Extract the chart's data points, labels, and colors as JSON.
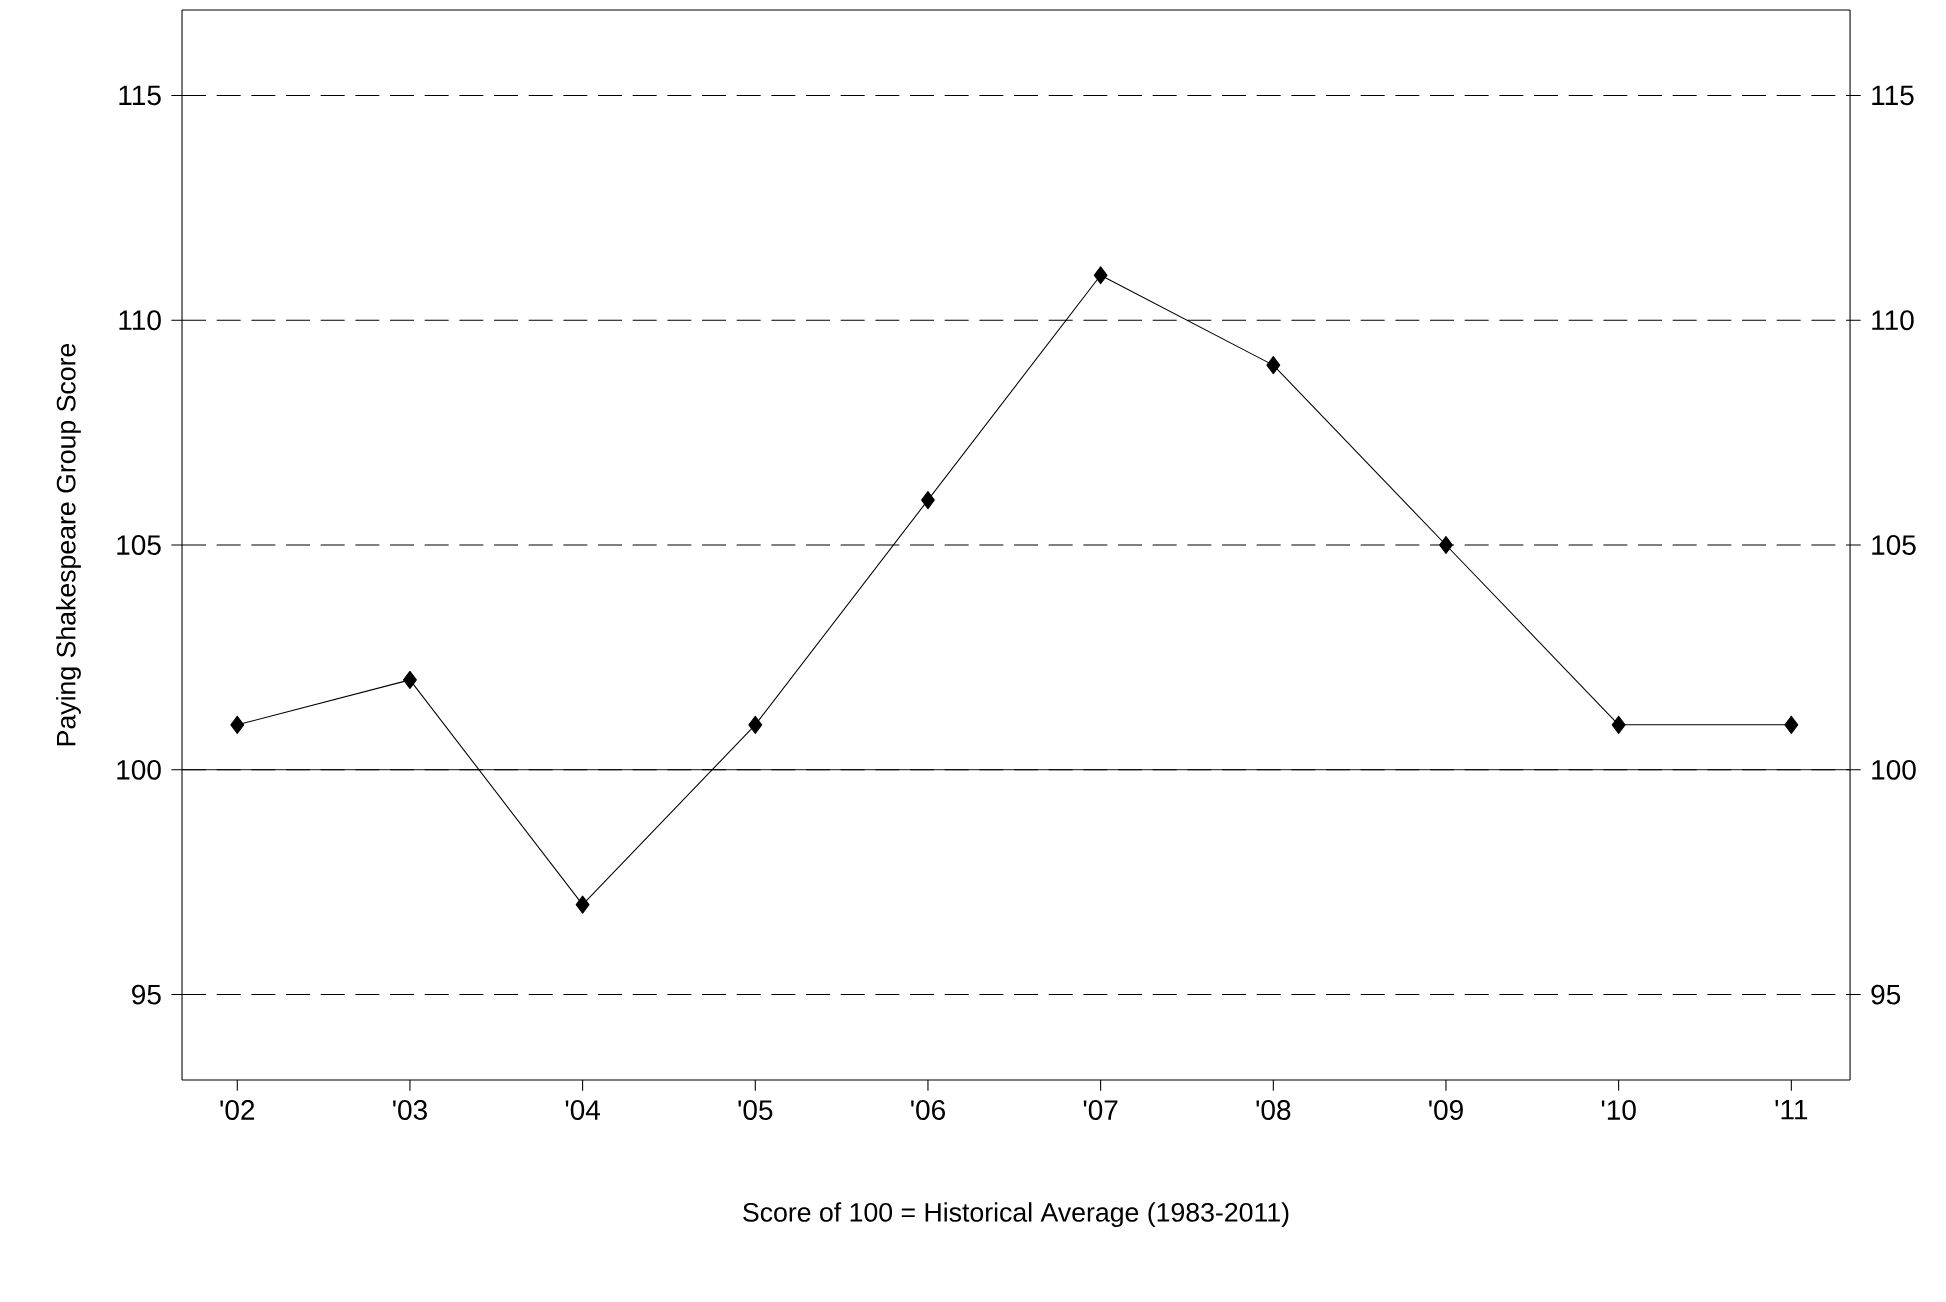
{
  "chart_data": {
    "type": "line",
    "categories": [
      "'02",
      "'03",
      "'04",
      "'05",
      "'06",
      "'07",
      "'08",
      "'09",
      "'10",
      "'11"
    ],
    "series": [
      {
        "color": "#000000",
        "values": [
          101,
          102,
          97,
          101,
          106,
          111,
          109,
          105,
          101,
          101
        ]
      }
    ],
    "xlabel": "Score of 100 = Historical Average (1983-2011)",
    "ylabel": "Paying Shakespeare Group Score",
    "ylim": [
      93.1,
      116.9
    ],
    "yticks": [
      95,
      100,
      105,
      110,
      115
    ],
    "y2lim": [
      93.1,
      116.9
    ],
    "y2ticks": [
      95,
      100,
      105,
      110,
      115
    ],
    "ref_lines": [
      {
        "axis": "y",
        "value": 100,
        "color": "#000000",
        "line_style": "solid"
      }
    ],
    "grid": "y",
    "marker": "diamond",
    "line_style": "solid"
  }
}
